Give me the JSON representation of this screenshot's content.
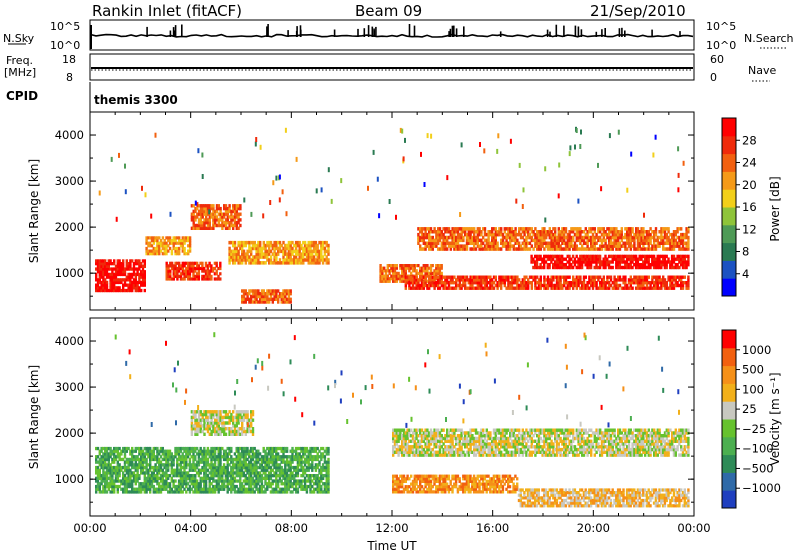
{
  "header": {
    "station": "Rankin Inlet (fitACF)",
    "beam": "Beam 09",
    "date": "21/Sep/2010"
  },
  "top_panels": {
    "nsky_label": "N.Sky",
    "nsky_ticks": [
      "10^5",
      "10^0"
    ],
    "nsearch_label": "N.Search",
    "nsearch_ticks": [
      "10^5",
      "10^0"
    ],
    "freq_label": "Freq.",
    "freq_unit": "[MHz]",
    "freq_ticks": [
      "18",
      "8"
    ],
    "nave_label": "Nave",
    "nave_ticks": [
      "60",
      "0"
    ],
    "cpid_label": "CPID",
    "cpid_value": "themis 3300"
  },
  "chart_data": [
    {
      "type": "heatmap",
      "name": "power",
      "ylabel": "Slant Range [km]",
      "yticks": [
        "1000",
        "2000",
        "3000",
        "4000"
      ],
      "ylim": [
        200,
        4500
      ],
      "xlim": [
        0,
        24
      ],
      "colorbar": {
        "label": "Power [dB]",
        "ticks": [
          "28",
          "24",
          "20",
          "16",
          "12",
          "8",
          "4"
        ],
        "colors": [
          "#0000ff",
          "#1c52c2",
          "#2a7a52",
          "#4e9a56",
          "#8fc43a",
          "#f2cf1a",
          "#f59a18",
          "#f2600f",
          "#ef2a0a",
          "#ff0000"
        ]
      },
      "features": [
        {
          "t0": 0.2,
          "t1": 2.2,
          "r0": 600,
          "r1": 1300,
          "level": 9
        },
        {
          "t0": 2.2,
          "t1": 4.0,
          "r0": 1400,
          "r1": 1800,
          "level": 6
        },
        {
          "t0": 3.0,
          "t1": 5.2,
          "r0": 850,
          "r1": 1250,
          "level": 8
        },
        {
          "t0": 4.0,
          "t1": 6.0,
          "r0": 1950,
          "r1": 2500,
          "level": 7
        },
        {
          "t0": 5.5,
          "t1": 9.5,
          "r0": 1200,
          "r1": 1700,
          "level": 6
        },
        {
          "t0": 6.0,
          "t1": 8.0,
          "r0": 350,
          "r1": 650,
          "level": 7
        },
        {
          "t0": 11.5,
          "t1": 14.0,
          "r0": 800,
          "r1": 1200,
          "level": 7
        },
        {
          "t0": 12.5,
          "t1": 23.8,
          "r0": 650,
          "r1": 950,
          "level": 8
        },
        {
          "t0": 13.0,
          "t1": 23.8,
          "r0": 1500,
          "r1": 2000,
          "level": 7
        },
        {
          "t0": 17.5,
          "t1": 23.8,
          "r0": 1100,
          "r1": 1400,
          "level": 9
        }
      ]
    },
    {
      "type": "heatmap",
      "name": "velocity",
      "ylabel": "Slant Range [km]",
      "yticks": [
        "1000",
        "2000",
        "3000",
        "4000"
      ],
      "ylim": [
        200,
        4500
      ],
      "xlim": [
        0,
        24
      ],
      "xticks": [
        "00:00",
        "04:00",
        "08:00",
        "12:00",
        "16:00",
        "20:00",
        "00:00"
      ],
      "xlabel": "Time UT",
      "colorbar": {
        "label": "Velocity [m s⁻¹]",
        "ticks": [
          "1000",
          "500",
          "100",
          "25",
          "−25",
          "−100",
          "−500",
          "−1000"
        ],
        "colors": [
          "#1f3fbf",
          "#2f6aa8",
          "#2e8b57",
          "#4caf50",
          "#66c22e",
          "#c8c8c0",
          "#f2b01a",
          "#f59018",
          "#f2600f",
          "#ff0000"
        ]
      },
      "features": [
        {
          "t0": 0.2,
          "t1": 9.5,
          "r0": 700,
          "r1": 1700,
          "level": 3
        },
        {
          "t0": 4.0,
          "t1": 6.5,
          "r0": 1950,
          "r1": 2500,
          "level": 5
        },
        {
          "t0": 12.0,
          "t1": 23.8,
          "r0": 1500,
          "r1": 2100,
          "level": 5
        },
        {
          "t0": 12.0,
          "t1": 17.0,
          "r0": 700,
          "r1": 1100,
          "level": 7
        },
        {
          "t0": 17.0,
          "t1": 23.8,
          "r0": 400,
          "r1": 800,
          "level": 6
        }
      ]
    }
  ]
}
